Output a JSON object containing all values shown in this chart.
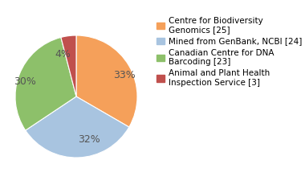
{
  "slices": [
    33,
    32,
    30,
    4
  ],
  "pct_labels": [
    "33%",
    "32%",
    "30%",
    "4%"
  ],
  "colors": [
    "#f5a05a",
    "#a8c4e0",
    "#8dc06a",
    "#c0504d"
  ],
  "legend_labels": [
    "Centre for Biodiversity\nGenomics [25]",
    "Mined from GenBank, NCBI [24]",
    "Canadian Centre for DNA\nBarcoding [23]",
    "Animal and Plant Health\nInspection Service [3]"
  ],
  "startangle": 90,
  "pct_distance": 0.7,
  "label_font_size": 9,
  "legend_font_size": 7.5,
  "bg_color": "#ffffff",
  "label_color": "#555555"
}
